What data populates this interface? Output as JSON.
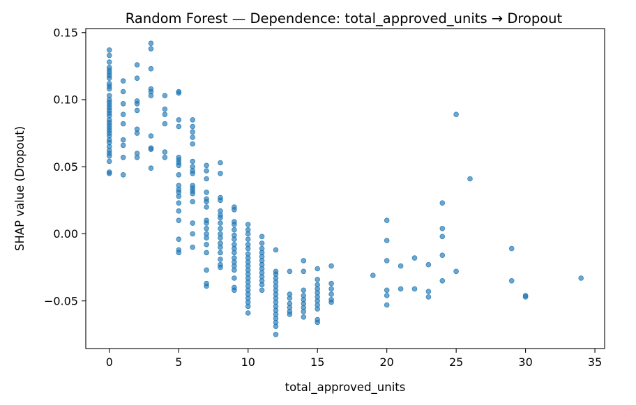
{
  "chart_data": {
    "type": "scatter",
    "title": "Random Forest — Dependence: total_approved_units → Dropout",
    "xlabel": "total_approved_units",
    "ylabel": "SHAP value (Dropout)",
    "xlim": [
      -1.7,
      35.7
    ],
    "ylim": [
      -0.0855,
      0.153
    ],
    "xticks": [
      0,
      5,
      10,
      15,
      20,
      25,
      30,
      35
    ],
    "xtick_labels": [
      "0",
      "5",
      "10",
      "15",
      "20",
      "25",
      "30",
      "35"
    ],
    "yticks": [
      -0.05,
      0.0,
      0.05,
      0.1,
      0.15
    ],
    "ytick_labels": [
      "−0.05",
      "0.00",
      "0.05",
      "0.10",
      "0.15"
    ],
    "grid": false,
    "legend": false,
    "marker_color": "#1f77b4",
    "marker_alpha": 0.65,
    "points": [
      [
        0,
        0.137
      ],
      [
        0,
        0.133
      ],
      [
        0,
        0.128
      ],
      [
        0,
        0.124
      ],
      [
        0,
        0.122
      ],
      [
        0,
        0.12
      ],
      [
        0,
        0.118
      ],
      [
        0,
        0.116
      ],
      [
        0,
        0.112
      ],
      [
        0,
        0.11
      ],
      [
        0,
        0.108
      ],
      [
        0,
        0.103
      ],
      [
        0,
        0.1
      ],
      [
        0,
        0.098
      ],
      [
        0,
        0.096
      ],
      [
        0,
        0.094
      ],
      [
        0,
        0.092
      ],
      [
        0,
        0.09
      ],
      [
        0,
        0.088
      ],
      [
        0,
        0.085
      ],
      [
        0,
        0.083
      ],
      [
        0,
        0.081
      ],
      [
        0,
        0.079
      ],
      [
        0,
        0.077
      ],
      [
        0,
        0.075
      ],
      [
        0,
        0.073
      ],
      [
        0,
        0.07
      ],
      [
        0,
        0.068
      ],
      [
        0,
        0.065
      ],
      [
        0,
        0.062
      ],
      [
        0,
        0.06
      ],
      [
        0,
        0.058
      ],
      [
        0,
        0.054
      ],
      [
        0,
        0.046
      ],
      [
        0,
        0.045
      ],
      [
        1,
        0.114
      ],
      [
        1,
        0.106
      ],
      [
        1,
        0.097
      ],
      [
        1,
        0.089
      ],
      [
        1,
        0.082
      ],
      [
        1,
        0.07
      ],
      [
        1,
        0.066
      ],
      [
        1,
        0.057
      ],
      [
        1,
        0.044
      ],
      [
        2,
        0.126
      ],
      [
        2,
        0.116
      ],
      [
        2,
        0.099
      ],
      [
        2,
        0.097
      ],
      [
        2,
        0.092
      ],
      [
        2,
        0.078
      ],
      [
        2,
        0.075
      ],
      [
        2,
        0.06
      ],
      [
        2,
        0.057
      ],
      [
        3,
        0.142
      ],
      [
        3,
        0.138
      ],
      [
        3,
        0.123
      ],
      [
        3,
        0.108
      ],
      [
        3,
        0.106
      ],
      [
        3,
        0.103
      ],
      [
        3,
        0.073
      ],
      [
        3,
        0.064
      ],
      [
        3,
        0.063
      ],
      [
        3,
        0.049
      ],
      [
        4,
        0.103
      ],
      [
        4,
        0.093
      ],
      [
        4,
        0.089
      ],
      [
        4,
        0.082
      ],
      [
        4,
        0.061
      ],
      [
        4,
        0.057
      ],
      [
        5,
        0.106
      ],
      [
        5,
        0.105
      ],
      [
        5,
        0.085
      ],
      [
        5,
        0.08
      ],
      [
        5,
        0.057
      ],
      [
        5,
        0.055
      ],
      [
        5,
        0.053
      ],
      [
        5,
        0.051
      ],
      [
        5,
        0.044
      ],
      [
        5,
        0.036
      ],
      [
        5,
        0.033
      ],
      [
        5,
        0.031
      ],
      [
        5,
        0.028
      ],
      [
        5,
        0.023
      ],
      [
        5,
        0.017
      ],
      [
        5,
        0.01
      ],
      [
        5,
        -0.004
      ],
      [
        5,
        -0.012
      ],
      [
        5,
        -0.014
      ],
      [
        6,
        0.085
      ],
      [
        6,
        0.08
      ],
      [
        6,
        0.076
      ],
      [
        6,
        0.072
      ],
      [
        6,
        0.067
      ],
      [
        6,
        0.054
      ],
      [
        6,
        0.05
      ],
      [
        6,
        0.047
      ],
      [
        6,
        0.045
      ],
      [
        6,
        0.036
      ],
      [
        6,
        0.034
      ],
      [
        6,
        0.032
      ],
      [
        6,
        0.03
      ],
      [
        6,
        0.024
      ],
      [
        6,
        0.008
      ],
      [
        6,
        0.0
      ],
      [
        6,
        -0.01
      ],
      [
        7,
        0.051
      ],
      [
        7,
        0.047
      ],
      [
        7,
        0.041
      ],
      [
        7,
        0.031
      ],
      [
        7,
        0.026
      ],
      [
        7,
        0.024
      ],
      [
        7,
        0.02
      ],
      [
        7,
        0.01
      ],
      [
        7,
        0.008
      ],
      [
        7,
        0.004
      ],
      [
        7,
        0.0
      ],
      [
        7,
        -0.003
      ],
      [
        7,
        -0.008
      ],
      [
        7,
        -0.014
      ],
      [
        7,
        -0.027
      ],
      [
        7,
        -0.037
      ],
      [
        7,
        -0.039
      ],
      [
        8,
        0.053
      ],
      [
        8,
        0.045
      ],
      [
        8,
        0.027
      ],
      [
        8,
        0.025
      ],
      [
        8,
        0.017
      ],
      [
        8,
        0.014
      ],
      [
        8,
        0.012
      ],
      [
        8,
        0.008
      ],
      [
        8,
        0.004
      ],
      [
        8,
        0.0
      ],
      [
        8,
        -0.003
      ],
      [
        8,
        -0.007
      ],
      [
        8,
        -0.01
      ],
      [
        8,
        -0.014
      ],
      [
        8,
        -0.019
      ],
      [
        8,
        -0.023
      ],
      [
        8,
        -0.025
      ],
      [
        9,
        0.02
      ],
      [
        9,
        0.018
      ],
      [
        9,
        0.009
      ],
      [
        9,
        0.007
      ],
      [
        9,
        0.003
      ],
      [
        9,
        -0.001
      ],
      [
        9,
        -0.004
      ],
      [
        9,
        -0.008
      ],
      [
        9,
        -0.011
      ],
      [
        9,
        -0.014
      ],
      [
        9,
        -0.018
      ],
      [
        9,
        -0.021
      ],
      [
        9,
        -0.024
      ],
      [
        9,
        -0.027
      ],
      [
        9,
        -0.033
      ],
      [
        9,
        -0.04
      ],
      [
        9,
        -0.042
      ],
      [
        10,
        0.007
      ],
      [
        10,
        0.003
      ],
      [
        10,
        0.0
      ],
      [
        10,
        -0.004
      ],
      [
        10,
        -0.008
      ],
      [
        10,
        -0.011
      ],
      [
        10,
        -0.015
      ],
      [
        10,
        -0.018
      ],
      [
        10,
        -0.021
      ],
      [
        10,
        -0.024
      ],
      [
        10,
        -0.027
      ],
      [
        10,
        -0.03
      ],
      [
        10,
        -0.033
      ],
      [
        10,
        -0.036
      ],
      [
        10,
        -0.039
      ],
      [
        10,
        -0.042
      ],
      [
        10,
        -0.045
      ],
      [
        10,
        -0.048
      ],
      [
        10,
        -0.051
      ],
      [
        10,
        -0.054
      ],
      [
        10,
        -0.059
      ],
      [
        11,
        -0.002
      ],
      [
        11,
        -0.007
      ],
      [
        11,
        -0.011
      ],
      [
        11,
        -0.014
      ],
      [
        11,
        -0.017
      ],
      [
        11,
        -0.02
      ],
      [
        11,
        -0.023
      ],
      [
        11,
        -0.026
      ],
      [
        11,
        -0.029
      ],
      [
        11,
        -0.032
      ],
      [
        11,
        -0.035
      ],
      [
        11,
        -0.038
      ],
      [
        11,
        -0.042
      ],
      [
        12,
        -0.012
      ],
      [
        12,
        -0.028
      ],
      [
        12,
        -0.03
      ],
      [
        12,
        -0.033
      ],
      [
        12,
        -0.036
      ],
      [
        12,
        -0.039
      ],
      [
        12,
        -0.042
      ],
      [
        12,
        -0.045
      ],
      [
        12,
        -0.048
      ],
      [
        12,
        -0.051
      ],
      [
        12,
        -0.054
      ],
      [
        12,
        -0.057
      ],
      [
        12,
        -0.06
      ],
      [
        12,
        -0.063
      ],
      [
        12,
        -0.066
      ],
      [
        12,
        -0.069
      ],
      [
        12,
        -0.075
      ],
      [
        13,
        -0.028
      ],
      [
        13,
        -0.045
      ],
      [
        13,
        -0.048
      ],
      [
        13,
        -0.052
      ],
      [
        13,
        -0.055
      ],
      [
        13,
        -0.058
      ],
      [
        13,
        -0.06
      ],
      [
        14,
        -0.02
      ],
      [
        14,
        -0.028
      ],
      [
        14,
        -0.042
      ],
      [
        14,
        -0.046
      ],
      [
        14,
        -0.049
      ],
      [
        14,
        -0.052
      ],
      [
        14,
        -0.055
      ],
      [
        14,
        -0.058
      ],
      [
        14,
        -0.062
      ],
      [
        15,
        -0.026
      ],
      [
        15,
        -0.034
      ],
      [
        15,
        -0.038
      ],
      [
        15,
        -0.041
      ],
      [
        15,
        -0.044
      ],
      [
        15,
        -0.047
      ],
      [
        15,
        -0.05
      ],
      [
        15,
        -0.053
      ],
      [
        15,
        -0.056
      ],
      [
        15,
        -0.064
      ],
      [
        15,
        -0.066
      ],
      [
        16,
        -0.024
      ],
      [
        16,
        -0.037
      ],
      [
        16,
        -0.041
      ],
      [
        16,
        -0.045
      ],
      [
        16,
        -0.049
      ],
      [
        16,
        -0.051
      ],
      [
        19,
        -0.031
      ],
      [
        20,
        0.01
      ],
      [
        20,
        -0.005
      ],
      [
        20,
        -0.02
      ],
      [
        20,
        -0.042
      ],
      [
        20,
        -0.046
      ],
      [
        20,
        -0.053
      ],
      [
        21,
        -0.024
      ],
      [
        21,
        -0.041
      ],
      [
        22,
        -0.018
      ],
      [
        22,
        -0.041
      ],
      [
        23,
        -0.023
      ],
      [
        23,
        -0.043
      ],
      [
        23,
        -0.047
      ],
      [
        24,
        0.023
      ],
      [
        24,
        0.004
      ],
      [
        24,
        -0.002
      ],
      [
        24,
        -0.016
      ],
      [
        24,
        -0.035
      ],
      [
        25,
        0.089
      ],
      [
        25,
        -0.028
      ],
      [
        26,
        0.041
      ],
      [
        29,
        -0.011
      ],
      [
        29,
        -0.035
      ],
      [
        30,
        -0.046
      ],
      [
        30,
        -0.047
      ],
      [
        34,
        -0.033
      ]
    ]
  }
}
